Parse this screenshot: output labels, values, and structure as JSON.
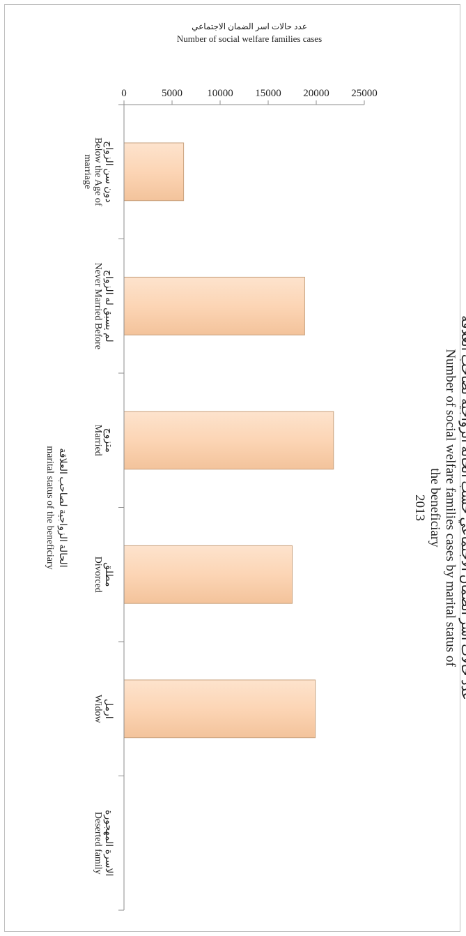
{
  "chart_data": {
    "type": "bar",
    "orientation": "vertical bars, figure rotated 90° clockwise",
    "title": {
      "ar": "عدد حالات اسر الضمان الاجتماعي حسب الحالة الزواجية لصاحب العلاقة",
      "en_line1": "Number of social welfare families cases by marital status of",
      "en_line2": "the beneficiary",
      "year": "2013"
    },
    "xlabel": {
      "ar": "الحالة الزواجية لصاحب العلاقة",
      "en": "marital status of the beneficiary"
    },
    "ylabel": {
      "ar": "عدد حالات اسر الضمان الاجتماعي",
      "en": "Number of social welfare families cases"
    },
    "ylim": [
      0,
      25000
    ],
    "yticks": [
      "0",
      "5000",
      "10000",
      "15000",
      "20000",
      "25000"
    ],
    "categories": [
      {
        "ar": "دون سن الزواج",
        "en": [
          "Below the Age of",
          "marriage"
        ]
      },
      {
        "ar": "لم يسبق له الزواج",
        "en": [
          "Never Married Before"
        ]
      },
      {
        "ar": "متزوج",
        "en": [
          "Married"
        ]
      },
      {
        "ar": "مطلق",
        "en": [
          "Divorced"
        ]
      },
      {
        "ar": "ارمل",
        "en": [
          "Widow"
        ]
      },
      {
        "ar": "الاسرة المهجورة",
        "en": [
          "Deserted family"
        ]
      }
    ],
    "values": [
      6200,
      18800,
      21800,
      17500,
      19900,
      0
    ],
    "bar_color": "#fcd5b5",
    "bar_edge_color": "#c9a27e",
    "grid": false,
    "legend": "none"
  }
}
